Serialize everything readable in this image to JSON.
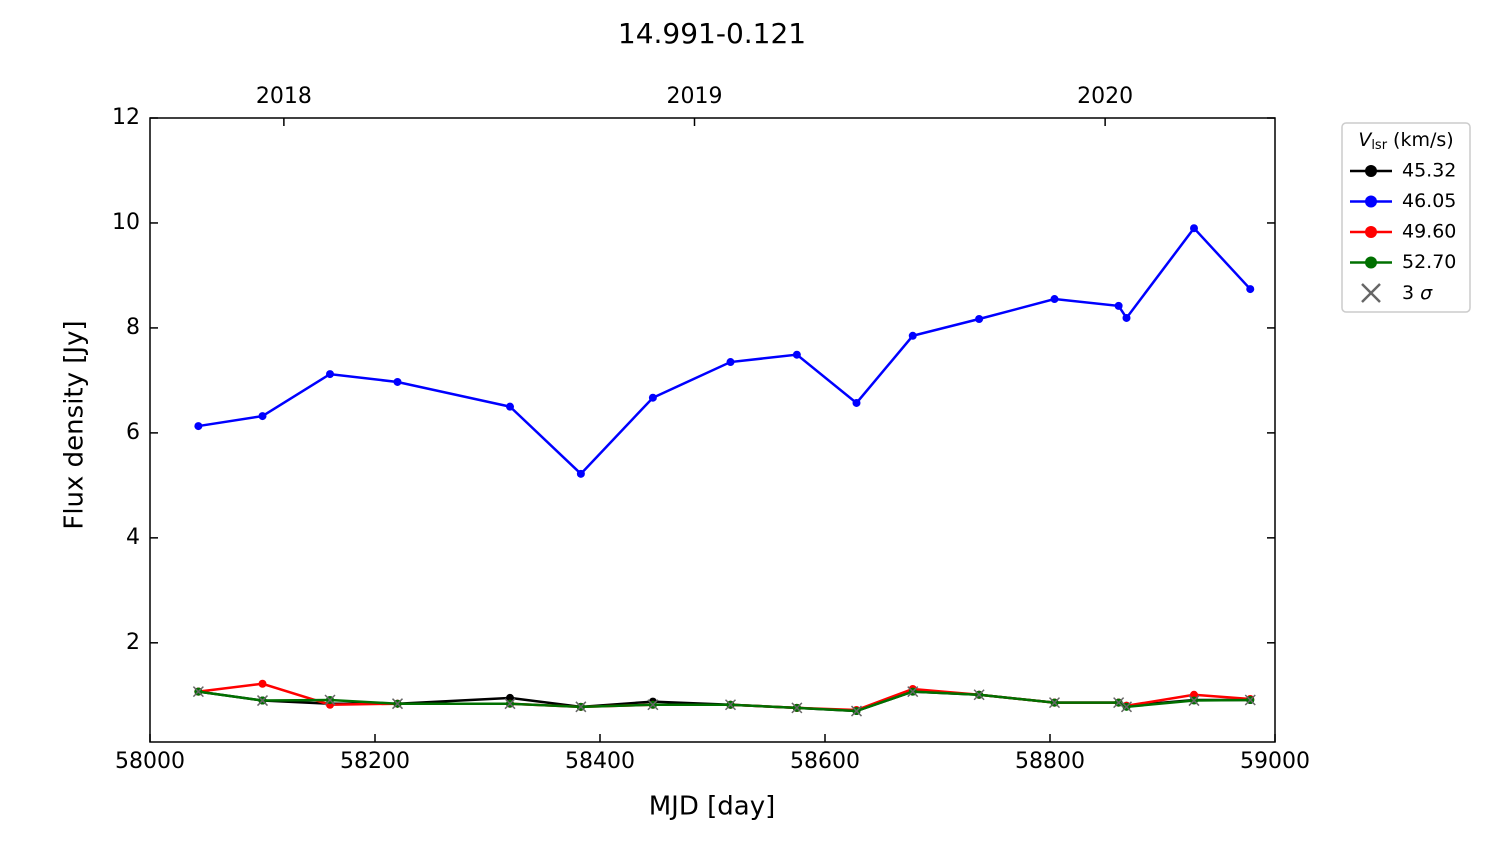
{
  "chart_data": {
    "type": "line",
    "title": "14.991-0.121",
    "xlabel": "MJD [day]",
    "ylabel": "Flux density [Jy]",
    "x": [
      58043,
      58100,
      58160,
      58220,
      58320,
      58383,
      58447,
      58516,
      58575,
      58628,
      58678,
      58737,
      58804,
      58861,
      58868,
      58928,
      58978
    ],
    "series": [
      {
        "name": "45.32",
        "color": "#000000",
        "values": [
          1.07,
          0.9,
          0.84,
          0.84,
          0.95,
          0.78,
          0.88,
          0.82,
          0.76,
          0.7,
          1.07,
          1.01,
          0.86,
          0.86,
          0.8,
          0.91,
          0.91
        ]
      },
      {
        "name": "46.05",
        "color": "#0000ff",
        "values": [
          6.13,
          6.32,
          7.12,
          6.97,
          6.5,
          5.22,
          6.67,
          7.35,
          7.49,
          6.57,
          7.85,
          8.17,
          8.55,
          8.42,
          8.19,
          9.9,
          8.74
        ]
      },
      {
        "name": "49.60",
        "color": "#ff0000",
        "values": [
          1.07,
          1.22,
          0.82,
          0.84,
          0.84,
          0.78,
          0.82,
          0.82,
          0.76,
          0.72,
          1.12,
          1.01,
          0.86,
          0.86,
          0.8,
          1.01,
          0.93
        ]
      },
      {
        "name": "52.70",
        "color": "#007000",
        "values": [
          1.07,
          0.9,
          0.91,
          0.84,
          0.84,
          0.78,
          0.82,
          0.82,
          0.76,
          0.7,
          1.07,
          1.01,
          0.86,
          0.86,
          0.78,
          0.9,
          0.91
        ]
      }
    ],
    "xlim": [
      58000,
      59000
    ],
    "xticks": [
      58000,
      58200,
      58400,
      58600,
      58800,
      59000
    ],
    "x2ticks": [
      {
        "value": 58119,
        "label": "2018"
      },
      {
        "value": 58484,
        "label": "2019"
      },
      {
        "value": 58849,
        "label": "2020"
      }
    ],
    "ylim": [
      0.11,
      12
    ],
    "yticks": [
      2,
      4,
      6,
      8,
      10,
      12
    ],
    "legend_title": {
      "symbol": "V",
      "subscript": "lsr",
      "unit": "(km/s)"
    },
    "sigma_marker": {
      "number": "3",
      "symbol": "σ",
      "color": "#666666"
    },
    "legend_position": "outside-right"
  }
}
